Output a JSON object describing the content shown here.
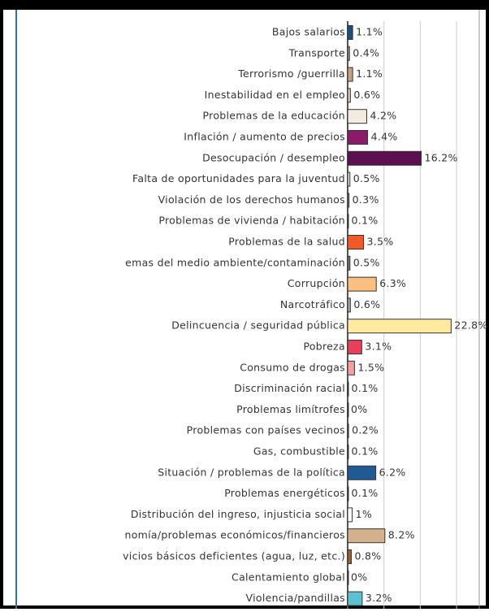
{
  "chart_data": {
    "type": "hbar",
    "categories": [
      "Bajos salarios",
      "Transporte",
      "Terrorismo /guerrilla",
      "Inestabilidad en el empleo",
      "Problemas de la educación",
      "Inflación / aumento de precios",
      "Desocupación / desempleo",
      "Falta de oportunidades para la juventud",
      "Violación de los derechos humanos",
      "Problemas de vivienda / habitación",
      "Problemas de la salud",
      "emas del medio ambiente/contaminación",
      "Corrupción",
      "Narcotráfico",
      "Delincuencia / seguridad pública",
      "Pobreza",
      "Consumo de drogas",
      "Discriminación racial",
      "Problemas limítrofes",
      "Problemas con países vecinos",
      "Gas, combustible",
      "Situación / problemas de la política",
      "Problemas energéticos",
      "Distribución del ingreso, injusticia social",
      "nomía/problemas económicos/financieros",
      "vicios básicos deficientes (agua, luz, etc.)",
      "Calentamiento global",
      "Violencia/pandillas"
    ],
    "values": [
      1.1,
      0.4,
      1.1,
      0.6,
      4.2,
      4.4,
      16.2,
      0.5,
      0.3,
      0.1,
      3.5,
      0.5,
      6.3,
      0.6,
      22.8,
      3.1,
      1.5,
      0.1,
      0,
      0.2,
      0.1,
      6.2,
      0.1,
      1,
      8.2,
      0.8,
      0,
      3.2
    ],
    "value_labels": [
      "1.1%",
      "0.4%",
      "1.1%",
      "0.6%",
      "4.2%",
      "4.4%",
      "16.2%",
      "0.5%",
      "0.3%",
      "0.1%",
      "3.5%",
      "0.5%",
      "6.3%",
      "0.6%",
      "22.8%",
      "3.1%",
      "1.5%",
      "0.1%",
      "0%",
      "0.2%",
      "0.1%",
      "6.2%",
      "0.1%",
      "1%",
      "8.2%",
      "0.8%",
      "0%",
      "3.2%"
    ],
    "colors": [
      "#1f4e79",
      "#999999",
      "#c8a080",
      "#d8cbb8",
      "#f2ebe0",
      "#8b1a6b",
      "#5c1050",
      "#dddddd",
      "#888888",
      "#bbbbbb",
      "#f05a28",
      "#777777",
      "#fbc080",
      "#aaaaaa",
      "#ffeaa0",
      "#e8405a",
      "#f4a0a0",
      "#999999",
      "#cccccc",
      "#aaaaaa",
      "#999999",
      "#1f5a94",
      "#999999",
      "#ffffff",
      "#d4b08c",
      "#a06030",
      "#cccccc",
      "#5bc0d0"
    ],
    "xlim": [
      0,
      29
    ],
    "xticks": [
      0,
      8,
      16,
      24
    ],
    "grid": true
  }
}
